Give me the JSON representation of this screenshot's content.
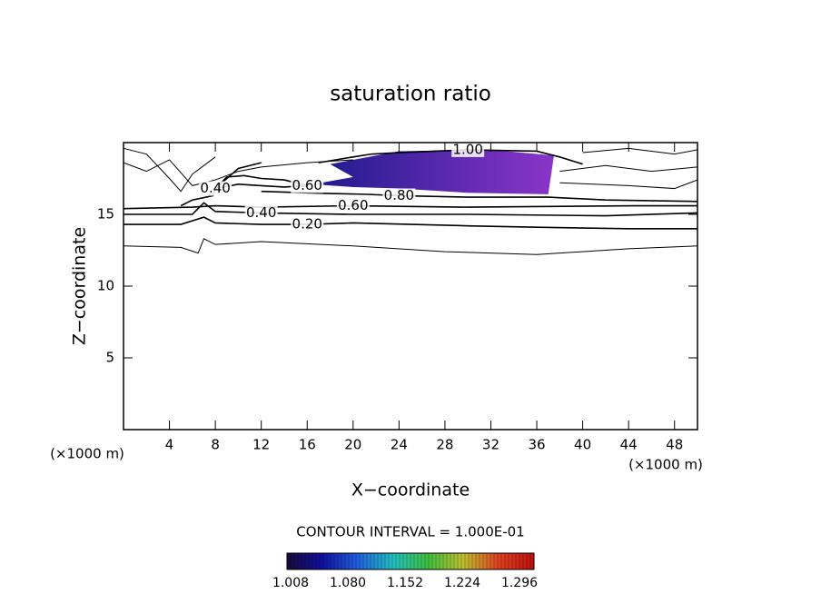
{
  "chart_data": {
    "type": "contour",
    "title": "saturation ratio",
    "xlabel": "X−coordinate",
    "ylabel": "Z−coordinate",
    "xunit": "(×1000 m)",
    "yunit": "(×1000 m)",
    "xlim": [
      0,
      50
    ],
    "ylim": [
      0,
      20
    ],
    "xticks": [
      4,
      8,
      12,
      16,
      20,
      24,
      28,
      32,
      36,
      40,
      44,
      48
    ],
    "yticks": [
      5,
      10,
      15
    ],
    "line_color": "#000000",
    "filled_region": {
      "colors": [
        "#1e1a8c",
        "#8a35c8"
      ],
      "x": [
        16.5,
        20,
        18,
        20,
        24,
        32,
        37.5,
        37.2,
        37,
        30,
        24,
        20
      ],
      "y": [
        17.1,
        17.6,
        18.5,
        18.8,
        19.4,
        19.5,
        19.1,
        17.5,
        16.4,
        16.5,
        16.8,
        16.9
      ]
    },
    "contours": [
      {
        "x": [
          0,
          5,
          6.5,
          7,
          8,
          12,
          20,
          28,
          36,
          44,
          50
        ],
        "y": [
          12.8,
          12.7,
          12.3,
          13.3,
          12.9,
          13.1,
          12.8,
          12.4,
          12.2,
          12.6,
          12.8
        ]
      },
      {
        "label": "0.20",
        "x": [
          0,
          5,
          7,
          8,
          12,
          16,
          20,
          30,
          36,
          44,
          50
        ],
        "y": [
          14.3,
          14.3,
          14.8,
          14.4,
          14.3,
          14.3,
          14.4,
          14.2,
          14.1,
          14.0,
          14.0
        ]
      },
      {
        "label": "0.40",
        "x": [
          0,
          6,
          7,
          8,
          12,
          20,
          30,
          42,
          50
        ],
        "y": [
          15.0,
          15.0,
          15.8,
          15.2,
          15.1,
          15.0,
          15.0,
          14.9,
          15.1
        ]
      },
      {
        "label": "0.60",
        "x": [
          0,
          6,
          8,
          12,
          20,
          30,
          44.5,
          47,
          50
        ],
        "y": [
          15.4,
          15.5,
          15.6,
          15.5,
          15.6,
          15.5,
          15.6,
          15.6,
          15.6
        ]
      },
      {
        "label": "0.80",
        "x": [
          12,
          16,
          18,
          21,
          24,
          30,
          37,
          42,
          50
        ],
        "y": [
          16.6,
          16.5,
          16.45,
          16.4,
          16.3,
          16.2,
          16.2,
          16.0,
          15.9
        ]
      },
      {
        "label": "1.00",
        "x": [
          17,
          20,
          21.6,
          24,
          30,
          36,
          38,
          40
        ],
        "y": [
          18.6,
          19.0,
          19.2,
          19.3,
          19.5,
          19.4,
          19.0,
          18.5
        ]
      },
      {
        "label": "0.60",
        "x": [
          8,
          9,
          10.5,
          12,
          14,
          16,
          14,
          12,
          10,
          8
        ],
        "y": [
          16.8,
          17.6,
          17.7,
          17.5,
          17.4,
          17.0,
          16.9,
          17.0,
          17.1,
          16.8
        ]
      },
      {
        "label": "0.40",
        "x": [
          5,
          6,
          7.8,
          8,
          9,
          10,
          12
        ],
        "y": [
          15.6,
          16.0,
          16.3,
          16.8,
          17.5,
          18.2,
          18.6
        ]
      },
      {
        "x": [
          0,
          2,
          4,
          6,
          8,
          10,
          12,
          16,
          20
        ],
        "y": [
          18.6,
          18.0,
          18.8,
          17.0,
          17.4,
          18.0,
          18.3,
          18.6,
          18.8
        ]
      },
      {
        "x": [
          0,
          2,
          4,
          5,
          6,
          8
        ],
        "y": [
          19.6,
          19.2,
          17.5,
          16.6,
          17.8,
          19.0
        ]
      },
      {
        "x": [
          38,
          42,
          46,
          50
        ],
        "y": [
          18.0,
          18.4,
          18.0,
          18.3
        ]
      },
      {
        "x": [
          38,
          44,
          48,
          50
        ],
        "y": [
          17.2,
          17.0,
          16.8,
          17.4
        ]
      },
      {
        "x": [
          40,
          44,
          48,
          50
        ],
        "y": [
          19.3,
          19.6,
          19.2,
          19.5
        ]
      }
    ],
    "contour_interval_text": "CONTOUR INTERVAL = 1.000E-01",
    "colorbar": {
      "colors": [
        "#1a0a3a",
        "#1010a0",
        "#2060e0",
        "#20c0c0",
        "#40c040",
        "#c0c030",
        "#e04020",
        "#c01010"
      ],
      "labels": [
        "1.008",
        "1.080",
        "1.152",
        "1.224",
        "1.296"
      ]
    }
  }
}
